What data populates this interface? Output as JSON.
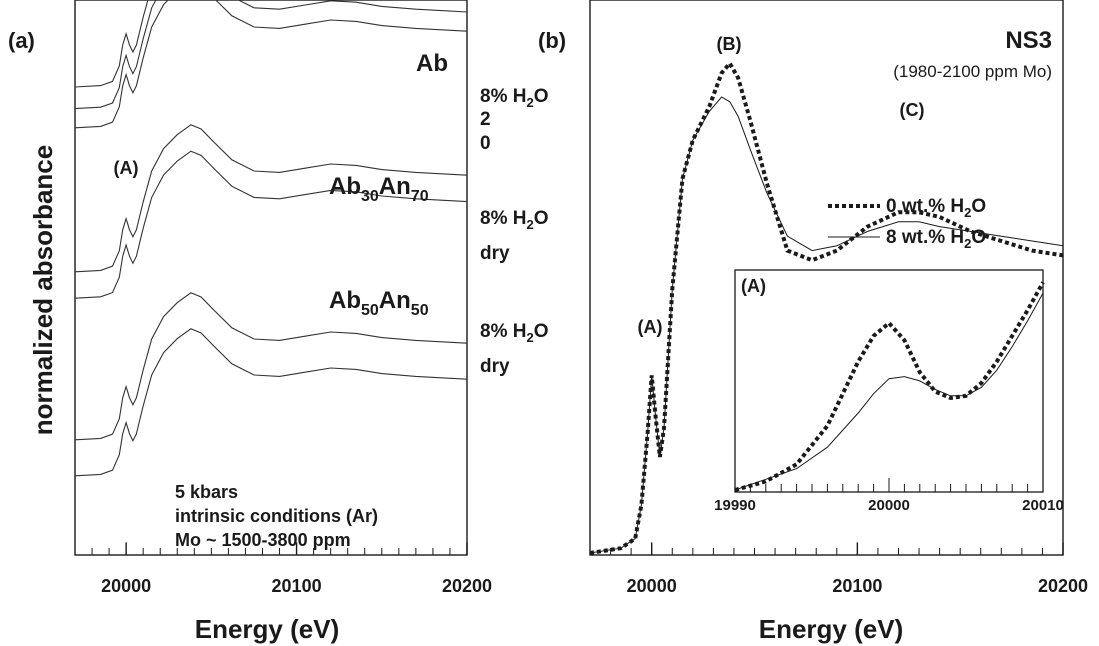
{
  "chart_data": [
    {
      "panel": "(a)",
      "type": "line",
      "ylabel": "normalized absorbance",
      "xlabel": "Energy (eV)",
      "xlim": [
        19970,
        20200
      ],
      "x_ticks": [
        20000,
        20100,
        20200
      ],
      "y_ticks": [],
      "peak_annotations": [
        {
          "label": "(A)",
          "x": 20000
        }
      ],
      "group_labels": [
        {
          "id": "ab",
          "base": "Ab",
          "sub1": "",
          "mid": "",
          "sub2": ""
        },
        {
          "id": "ab30",
          "base": "Ab",
          "sub1": "30",
          "mid": "An",
          "sub2": "70"
        },
        {
          "id": "ab50",
          "base": "Ab",
          "sub1": "50",
          "mid": "An",
          "sub2": "50"
        }
      ],
      "series_labels": [
        {
          "id": "ab-8",
          "text": "8% H",
          "sub": "2",
          "tail": "O"
        },
        {
          "id": "ab-2",
          "text": "2",
          "sub": "",
          "tail": ""
        },
        {
          "id": "ab-0",
          "text": "0",
          "sub": "",
          "tail": ""
        },
        {
          "id": "ab30-8",
          "text": "8% H",
          "sub": "2",
          "tail": "O"
        },
        {
          "id": "ab30-dry",
          "text": "dry",
          "sub": "",
          "tail": ""
        },
        {
          "id": "ab50-8",
          "text": "8% H",
          "sub": "2",
          "tail": "O"
        },
        {
          "id": "ab50-dry",
          "text": "dry",
          "sub": "",
          "tail": ""
        }
      ],
      "notes": [
        "5 kbars",
        "intrinsic conditions (Ar)",
        "Mo ~ 1500-3800 ppm"
      ],
      "curve_shape": {
        "x": [
          19970,
          19985,
          19992,
          19996,
          19998,
          20000,
          20002,
          20004,
          20006,
          20010,
          20015,
          20022,
          20030,
          20038,
          20044,
          20052,
          20062,
          20075,
          20090,
          20105,
          20120,
          20135,
          20150,
          20170,
          20185,
          20200
        ],
        "y": [
          0.0,
          0.01,
          0.04,
          0.15,
          0.3,
          0.38,
          0.3,
          0.25,
          0.3,
          0.5,
          0.72,
          0.88,
          0.98,
          1.05,
          1.02,
          0.92,
          0.8,
          0.72,
          0.71,
          0.74,
          0.77,
          0.76,
          0.73,
          0.71,
          0.7,
          0.69
        ]
      },
      "curve_offsets": [
        {
          "id": "ab-8",
          "offset": 0.95
        },
        {
          "id": "ab-2",
          "offset": 0.905
        },
        {
          "id": "ab-0",
          "offset": 0.865
        },
        {
          "id": "ab30-8",
          "offset": 0.565
        },
        {
          "id": "ab30-dry",
          "offset": 0.51
        },
        {
          "id": "ab50-8",
          "offset": 0.215
        },
        {
          "id": "ab50-dry",
          "offset": 0.14
        }
      ]
    },
    {
      "panel": "(b)",
      "type": "line",
      "title": "NS3",
      "subtitle": "(1980-2100 ppm Mo)",
      "xlabel": "Energy (eV)",
      "xlim": [
        19970,
        20200
      ],
      "x_ticks": [
        20000,
        20100,
        20200
      ],
      "peak_annotations": [
        {
          "label": "(A)",
          "x": 20000
        },
        {
          "label": "(B)",
          "x": 20038
        },
        {
          "label": "(C)",
          "x": 20125
        }
      ],
      "legend": {
        "placement": "center-right",
        "entries": [
          {
            "style": "dotted",
            "text": "0 wt.% H",
            "sub": "2",
            "tail": "O"
          },
          {
            "style": "solid",
            "text": "8 wt.% H",
            "sub": "2",
            "tail": "O"
          }
        ]
      },
      "series": [
        {
          "style": "dotted",
          "x": [
            19970,
            19985,
            19992,
            19995,
            19998,
            20000,
            20002,
            20004,
            20006,
            20010,
            20015,
            20020,
            20028,
            20034,
            20038,
            20042,
            20048,
            20056,
            20066,
            20078,
            20090,
            20105,
            20120,
            20130,
            20140,
            20155,
            20170,
            20185,
            20200
          ],
          "y": [
            0.0,
            0.01,
            0.03,
            0.1,
            0.25,
            0.37,
            0.28,
            0.2,
            0.26,
            0.55,
            0.78,
            0.86,
            0.93,
            1.0,
            1.02,
            0.99,
            0.9,
            0.77,
            0.63,
            0.61,
            0.63,
            0.68,
            0.71,
            0.71,
            0.7,
            0.67,
            0.65,
            0.63,
            0.62
          ]
        },
        {
          "style": "solid",
          "x": [
            19970,
            19985,
            19992,
            19995,
            19998,
            20000,
            20002,
            20004,
            20006,
            20010,
            20015,
            20020,
            20028,
            20034,
            20038,
            20042,
            20048,
            20056,
            20066,
            20078,
            20090,
            20105,
            20120,
            20130,
            20140,
            20155,
            20170,
            20185,
            20200
          ],
          "y": [
            0.0,
            0.01,
            0.03,
            0.1,
            0.25,
            0.37,
            0.28,
            0.2,
            0.26,
            0.55,
            0.78,
            0.86,
            0.92,
            0.95,
            0.94,
            0.91,
            0.84,
            0.75,
            0.66,
            0.63,
            0.64,
            0.67,
            0.69,
            0.69,
            0.68,
            0.67,
            0.66,
            0.65,
            0.64
          ]
        }
      ],
      "inset": {
        "label": "(A)",
        "xlim": [
          19990,
          20010
        ],
        "x_ticks": [
          19990,
          20000,
          20010
        ],
        "series": [
          {
            "style": "dotted",
            "x": [
              19990,
              19992,
              19994,
              19996,
              19998,
              19999,
              20000,
              20001,
              20002,
              20003,
              20004,
              20005,
              20006,
              20007,
              20008,
              20009,
              20010
            ],
            "y": [
              0.0,
              0.04,
              0.12,
              0.3,
              0.6,
              0.72,
              0.78,
              0.7,
              0.55,
              0.46,
              0.43,
              0.44,
              0.5,
              0.6,
              0.72,
              0.84,
              0.97
            ]
          },
          {
            "style": "solid",
            "x": [
              19990,
              19992,
              19994,
              19996,
              19998,
              19999,
              20000,
              20001,
              20002,
              20003,
              20004,
              20005,
              20006,
              20007,
              20008,
              20009,
              20010
            ],
            "y": [
              0.0,
              0.05,
              0.1,
              0.2,
              0.36,
              0.45,
              0.52,
              0.53,
              0.51,
              0.47,
              0.44,
              0.44,
              0.48,
              0.56,
              0.67,
              0.79,
              0.92
            ]
          }
        ]
      }
    }
  ]
}
